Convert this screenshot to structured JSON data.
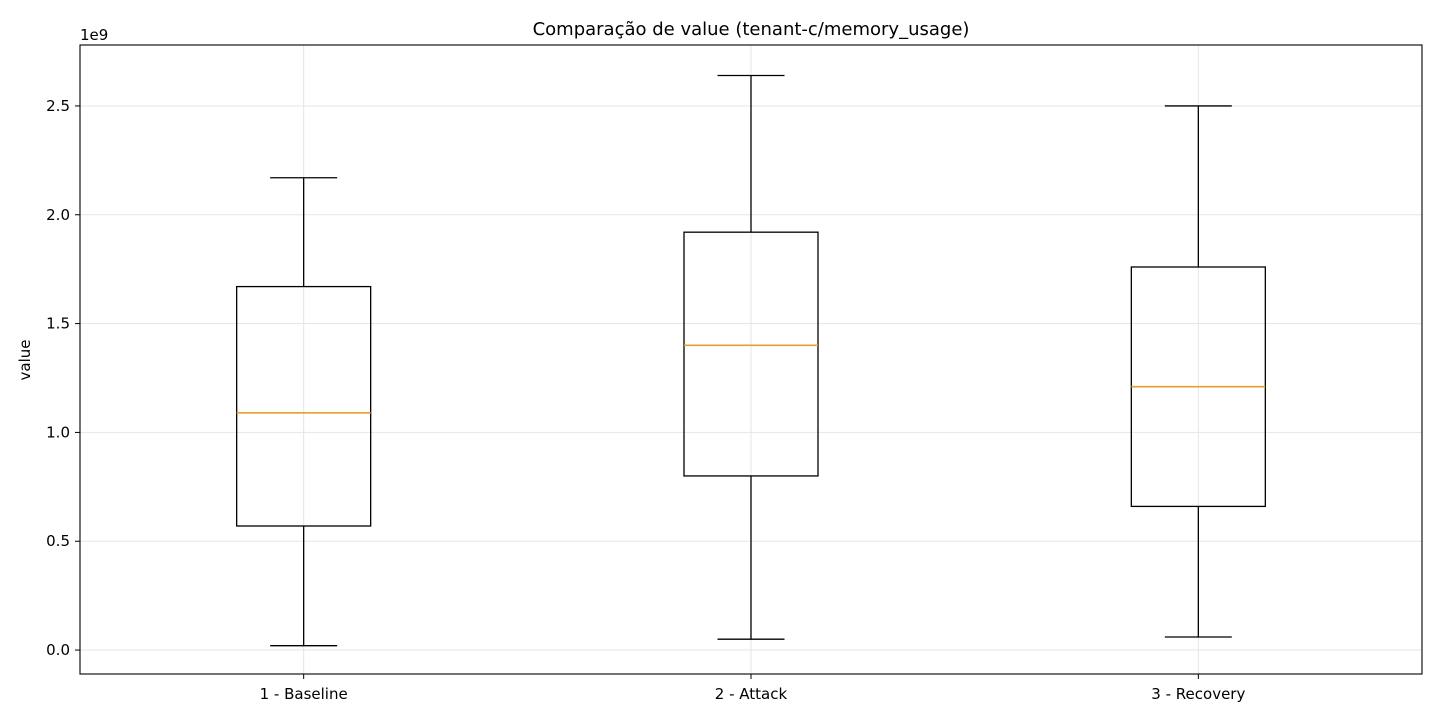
{
  "chart_data": {
    "type": "box",
    "title": "Comparação de value (tenant-c/memory_usage)",
    "xlabel": "",
    "ylabel": "value",
    "y_offset_label": "1e9",
    "y_scale_factor": 1000000000,
    "ylim": [
      -0.11,
      2.78
    ],
    "yticks": [
      0.0,
      0.5,
      1.0,
      1.5,
      2.0,
      2.5
    ],
    "ytick_labels": [
      "0.0",
      "0.5",
      "1.0",
      "1.5",
      "2.0",
      "2.5"
    ],
    "grid": true,
    "categories": [
      "1 - Baseline",
      "2 - Attack",
      "3 - Recovery"
    ],
    "boxes": [
      {
        "category": "1 - Baseline",
        "whisker_low": 0.02,
        "q1": 0.57,
        "median": 1.09,
        "q3": 1.67,
        "whisker_high": 2.17
      },
      {
        "category": "2 - Attack",
        "whisker_low": 0.05,
        "q1": 0.8,
        "median": 1.4,
        "q3": 1.92,
        "whisker_high": 2.64
      },
      {
        "category": "3 - Recovery",
        "whisker_low": 0.06,
        "q1": 0.66,
        "median": 1.21,
        "q3": 1.76,
        "whisker_high": 2.5
      }
    ],
    "colors": {
      "box": "#000000",
      "median": "#e69f2f",
      "grid": "#e5e5e5"
    }
  }
}
